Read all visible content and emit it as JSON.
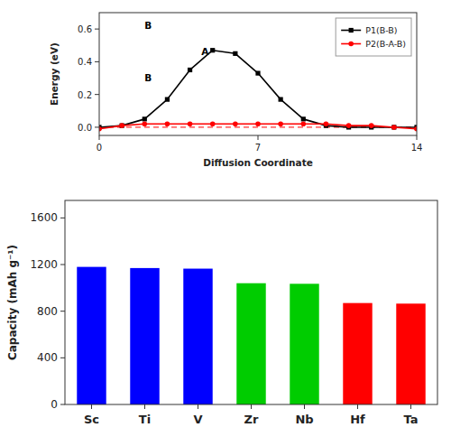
{
  "chart_data": [
    {
      "type": "bar",
      "categories": [
        "Sc",
        "Ti",
        "V",
        "Zr",
        "Nb",
        "Hf",
        "Ta"
      ],
      "values": [
        1180,
        1170,
        1165,
        1040,
        1035,
        870,
        865
      ],
      "colors": [
        "#0000FF",
        "#0000FF",
        "#0000FF",
        "#00CC00",
        "#00CC00",
        "#FF0000",
        "#FF0000"
      ],
      "ylabel": "Capacity (mAh g⁻¹)",
      "ylim": [
        0,
        1750
      ],
      "yticks": [
        0,
        400,
        800,
        1200,
        1600
      ],
      "grid": false
    },
    {
      "type": "line",
      "x": [
        0,
        1,
        2,
        3,
        4,
        5,
        6,
        7,
        8,
        9,
        10,
        11,
        12,
        13,
        14
      ],
      "series": [
        {
          "name": "P1(B-B)",
          "color": "black",
          "marker": "square",
          "line_style": "solid",
          "values": [
            0.0,
            0.01,
            0.05,
            0.17,
            0.35,
            0.47,
            0.45,
            0.33,
            0.17,
            0.05,
            0.01,
            0.0,
            0.0,
            0.0,
            0.0
          ]
        },
        {
          "name": "P2(B-A-B)",
          "color": "red",
          "marker": "circle",
          "line_style": "solid",
          "values": [
            -0.01,
            0.01,
            0.02,
            0.02,
            0.02,
            0.02,
            0.02,
            0.02,
            0.02,
            0.02,
            0.02,
            0.01,
            0.01,
            0.0,
            -0.01
          ]
        }
      ],
      "xlabel": "Diffusion Coordinate",
      "ylabel": "Energy (eV)",
      "xlim": [
        0,
        14
      ],
      "ylim": [
        -0.05,
        0.7
      ],
      "xticks": [
        0,
        7,
        14
      ],
      "yticks": [
        {
          "value": 0.0,
          "label": "0.0"
        },
        0.2,
        0.4,
        0.6
      ],
      "legend": "upper right",
      "grid": false,
      "annotations": [
        {
          "text": "B",
          "x": 2.0,
          "y": 0.6
        },
        {
          "text": "A",
          "x": 4.5,
          "y": 0.44
        },
        {
          "text": "B",
          "x": 2.0,
          "y": 0.28
        }
      ],
      "reference_lines": [
        {
          "value": 0.0,
          "color": "red",
          "line_style": "dashed"
        }
      ]
    }
  ]
}
